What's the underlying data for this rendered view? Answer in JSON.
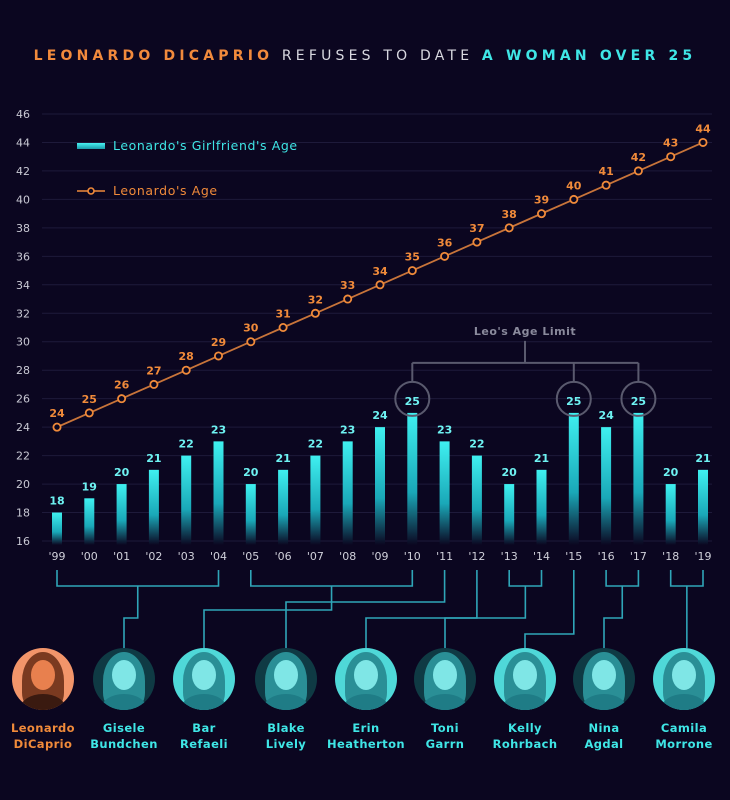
{
  "title": {
    "part1": "LEONARDO DICAPRIO",
    "part2": " REFUSES TO DATE ",
    "part3": "A WOMAN OVER 25"
  },
  "colors": {
    "background": "#0b0620",
    "leo_orange": "#f08a3a",
    "girlfriend_cyan": "#3fe6e6",
    "grid": "#1e1a3a",
    "connector": "#2fa5b8",
    "limit_gray": "#5a5a6e"
  },
  "chart_data": {
    "type": "bar",
    "title": "LEONARDO DICAPRIO REFUSES TO DATE A WOMAN OVER 25",
    "xlabel": "",
    "ylabel": "",
    "ylim": [
      16,
      46
    ],
    "yticks": [
      16,
      18,
      20,
      22,
      24,
      26,
      28,
      30,
      32,
      34,
      36,
      38,
      40,
      42,
      44,
      46
    ],
    "grid": true,
    "legend_position": "top-left",
    "categories": [
      "'99",
      "'00",
      "'01",
      "'02",
      "'03",
      "'04",
      "'05",
      "'06",
      "'07",
      "'08",
      "'09",
      "'10",
      "'11",
      "'12",
      "'13",
      "'14",
      "'15",
      "'16",
      "'17",
      "'18",
      "'19"
    ],
    "series": [
      {
        "name": "Leonardo's Girlfriend's Age",
        "type": "bar",
        "values": [
          18,
          19,
          20,
          21,
          22,
          23,
          20,
          21,
          22,
          23,
          24,
          25,
          23,
          22,
          20,
          21,
          25,
          24,
          25,
          20,
          21
        ]
      },
      {
        "name": "Leonardo's Age",
        "type": "line",
        "values": [
          24,
          25,
          26,
          27,
          28,
          29,
          30,
          31,
          32,
          33,
          34,
          35,
          36,
          37,
          38,
          39,
          40,
          41,
          42,
          43,
          44
        ]
      }
    ],
    "annotations": [
      {
        "text": "Leo's Age Limit",
        "highlighted_categories": [
          "'10",
          "'15",
          "'17"
        ],
        "value": 25
      }
    ]
  },
  "legend": {
    "girlfriend": "Leonardo's Girlfriend's Age",
    "leo": "Leonardo's Age"
  },
  "age_limit_label": "Leo's Age Limit",
  "people": [
    {
      "first": "Leonardo",
      "last": "DiCaprio",
      "years": [],
      "is_leo": true
    },
    {
      "first": "Gisele",
      "last": "Bundchen",
      "years": [
        "'99",
        "'04"
      ]
    },
    {
      "first": "Bar",
      "last": "Refaeli",
      "years": [
        "'05",
        "'10"
      ]
    },
    {
      "first": "Blake",
      "last": "Lively",
      "years": [
        "'11"
      ]
    },
    {
      "first": "Erin",
      "last": "Heatherton",
      "years": [
        "'12"
      ]
    },
    {
      "first": "Toni",
      "last": "Garrn",
      "years": [
        "'13",
        "'14"
      ]
    },
    {
      "first": "Kelly",
      "last": "Rohrbach",
      "years": [
        "'15"
      ]
    },
    {
      "first": "Nina",
      "last": "Agdal",
      "years": [
        "'16",
        "'17"
      ]
    },
    {
      "first": "Camila",
      "last": "Morrone",
      "years": [
        "'18",
        "'19"
      ]
    }
  ]
}
